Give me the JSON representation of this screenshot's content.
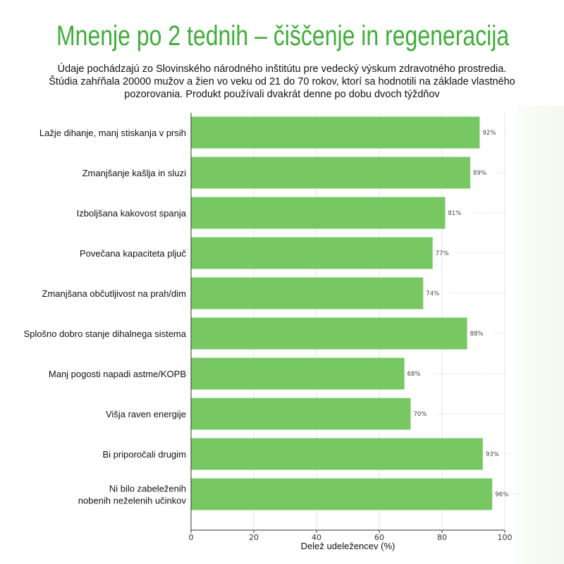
{
  "chart_data": {
    "type": "bar",
    "orientation": "horizontal",
    "title": "Mnenje po 2 tednih – čiščenje in regeneracija",
    "subtitle": [
      "Údaje pochádzajú zo Slovinského národného inštitútu pre vedecký výskum zdravotného prostredia.",
      "Štúdia zahŕňala 20000 mužov a žien vo veku od 21 do 70 rokov, ktorí sa hodnotili na základe vlastného",
      "pozorovania. Produkt používali dvakrát denne po dobu dvoch týždňov"
    ],
    "categories": [
      "Lažje dihanje, manj stiskanja v prsih",
      "Zmanjšanje kašlja in sluzi",
      "Izboljšana kakovost spanja",
      "Povečana kapaciteta pljuč",
      "Zmanjšana občutljivost na prah/dim",
      "Splošno dobro stanje dihalnega sistema",
      "Manj pogosti napadi astme/KOPB",
      "Višja raven energije",
      "Bi priporočali drugim",
      "Ni bilo zabeleženih\nnobenih neželenih učinkov"
    ],
    "values": [
      92,
      89,
      81,
      77,
      74,
      88,
      68,
      70,
      93,
      96
    ],
    "data_labels": [
      "92%",
      "89%",
      "81%",
      "77%",
      "74%",
      "88%",
      "68%",
      "70%",
      "93%",
      "96%"
    ],
    "xlabel": "Delež udeležencev (%)",
    "ylabel": "",
    "xlim": [
      0,
      100
    ],
    "xticks": [
      "0",
      "20",
      "40",
      "60",
      "80",
      "100"
    ],
    "grid": "vertical",
    "colors": {
      "bar": "#77c863",
      "title": "#3fae38"
    }
  }
}
